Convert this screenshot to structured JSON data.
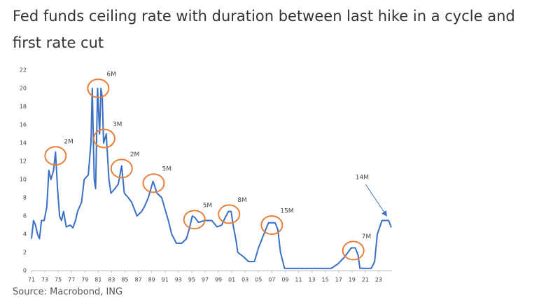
{
  "chart_data": {
    "type": "line",
    "title": "Fed funds ceiling rate with duration between last hike in a cycle and first rate cut",
    "source": "Source: Macrobond, ING",
    "color": "#3a6fc4",
    "annotation_color": "#e8803a",
    "grid": false,
    "x": [
      1971.0,
      1971.3,
      1971.6,
      1971.9,
      1972.2,
      1972.5,
      1972.9,
      1973.3,
      1973.6,
      1973.9,
      1974.3,
      1974.6,
      1974.9,
      1975.2,
      1975.5,
      1975.8,
      1976.2,
      1976.8,
      1977.2,
      1977.6,
      1977.9,
      1978.5,
      1978.9,
      1979.5,
      1979.9,
      1980.1,
      1980.4,
      1980.6,
      1980.9,
      1981.2,
      1981.4,
      1981.6,
      1981.8,
      1982.2,
      1982.6,
      1982.9,
      1983.5,
      1984.0,
      1984.5,
      1984.9,
      1985.5,
      1986.0,
      1986.8,
      1987.5,
      1987.9,
      1988.5,
      1989.2,
      1989.8,
      1990.5,
      1990.9,
      1991.5,
      1992.0,
      1992.7,
      1993.5,
      1994.2,
      1994.6,
      1995.1,
      1995.5,
      1996.0,
      1997.0,
      1998.0,
      1998.8,
      1999.5,
      2000.0,
      2000.5,
      2000.9,
      2001.2,
      2001.6,
      2001.9,
      2002.8,
      2003.5,
      2004.4,
      2005.0,
      2005.8,
      2006.5,
      2007.5,
      2007.9,
      2008.3,
      2008.9,
      2015.9,
      2016.9,
      2017.9,
      2018.9,
      2019.5,
      2019.9,
      2020.2,
      2021.9,
      2022.4,
      2022.8,
      2023.5,
      2024.5,
      2024.9
    ],
    "values": [
      3.5,
      5.5,
      5.0,
      4.0,
      3.5,
      5.5,
      5.5,
      7.0,
      11.0,
      10.0,
      11.0,
      13.0,
      9.0,
      6.0,
      5.5,
      6.5,
      4.8,
      5.0,
      4.7,
      5.5,
      6.5,
      7.5,
      10.0,
      10.5,
      14.0,
      20.0,
      10.0,
      9.0,
      20.0,
      15.0,
      20.0,
      19.0,
      14.0,
      15.0,
      10.0,
      8.5,
      9.0,
      9.5,
      11.5,
      8.5,
      8.0,
      7.5,
      6.0,
      6.5,
      7.0,
      8.0,
      9.8,
      8.5,
      8.0,
      7.0,
      5.5,
      4.0,
      3.0,
      3.0,
      3.5,
      4.5,
      6.0,
      5.8,
      5.3,
      5.5,
      5.5,
      4.8,
      5.0,
      5.8,
      6.5,
      6.5,
      5.0,
      3.5,
      2.0,
      1.5,
      1.0,
      1.0,
      2.5,
      4.0,
      5.25,
      5.25,
      4.5,
      2.0,
      0.25,
      0.25,
      0.75,
      1.5,
      2.5,
      2.5,
      1.75,
      0.25,
      0.25,
      1.0,
      4.0,
      5.5,
      5.5,
      4.75
    ],
    "xlim": [
      1971,
      2025
    ],
    "xticks": [
      {
        "value": 1971,
        "label": "71"
      },
      {
        "value": 1973,
        "label": "73"
      },
      {
        "value": 1975,
        "label": "75"
      },
      {
        "value": 1977,
        "label": "77"
      },
      {
        "value": 1979,
        "label": "79"
      },
      {
        "value": 1981,
        "label": "81"
      },
      {
        "value": 1983,
        "label": "83"
      },
      {
        "value": 1985,
        "label": "85"
      },
      {
        "value": 1987,
        "label": "87"
      },
      {
        "value": 1989,
        "label": "89"
      },
      {
        "value": 1991,
        "label": "91"
      },
      {
        "value": 1993,
        "label": "93"
      },
      {
        "value": 1995,
        "label": "95"
      },
      {
        "value": 1997,
        "label": "97"
      },
      {
        "value": 1999,
        "label": "99"
      },
      {
        "value": 2001,
        "label": "01"
      },
      {
        "value": 2003,
        "label": "03"
      },
      {
        "value": 2005,
        "label": "05"
      },
      {
        "value": 2007,
        "label": "07"
      },
      {
        "value": 2009,
        "label": "09"
      },
      {
        "value": 2011,
        "label": "11"
      },
      {
        "value": 2013,
        "label": "13"
      },
      {
        "value": 2015,
        "label": "15"
      },
      {
        "value": 2017,
        "label": "17"
      },
      {
        "value": 2019,
        "label": "19"
      },
      {
        "value": 2021,
        "label": "21"
      },
      {
        "value": 2023,
        "label": "23"
      }
    ],
    "ylim": [
      0,
      22
    ],
    "yticks": [
      0,
      2,
      4,
      6,
      8,
      10,
      12,
      14,
      16,
      18,
      20,
      22
    ],
    "annotations": [
      {
        "label": "2M",
        "x": 1974.6,
        "y": 12.6
      },
      {
        "label": "6M",
        "x": 1981.0,
        "y": 20.0
      },
      {
        "label": "3M",
        "x": 1981.9,
        "y": 14.5
      },
      {
        "label": "2M",
        "x": 1984.5,
        "y": 11.2
      },
      {
        "label": "5M",
        "x": 1989.3,
        "y": 9.6
      },
      {
        "label": "5M",
        "x": 1995.4,
        "y": 5.6
      },
      {
        "label": "8M",
        "x": 2000.6,
        "y": 6.2
      },
      {
        "label": "15M",
        "x": 2007.0,
        "y": 5.0
      },
      {
        "label": "7M",
        "x": 2019.2,
        "y": 2.2
      },
      {
        "label": "14M",
        "x": 2024.2,
        "y": 6.0,
        "arrow": true
      }
    ]
  }
}
